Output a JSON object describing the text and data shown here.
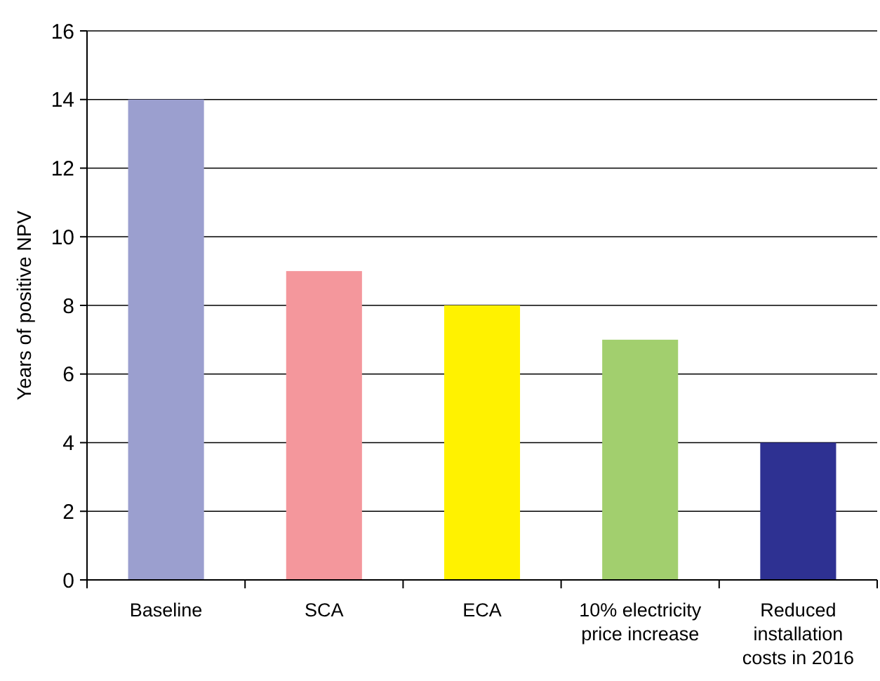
{
  "chart_data": {
    "type": "bar",
    "ylabel": "Years of positive NPV",
    "categories": [
      "Baseline",
      "SCA",
      "ECA",
      "10% electricity price increase",
      "Reduced installation costs in 2016"
    ],
    "values": [
      14,
      9,
      8,
      7,
      4
    ],
    "colors": [
      "#9b9fcf",
      "#f4979c",
      "#fff200",
      "#a2cf6e",
      "#2e3192"
    ],
    "ylim": [
      0,
      16
    ],
    "yticks": [
      0,
      2,
      4,
      6,
      8,
      10,
      12,
      14,
      16
    ],
    "grid": "y"
  }
}
